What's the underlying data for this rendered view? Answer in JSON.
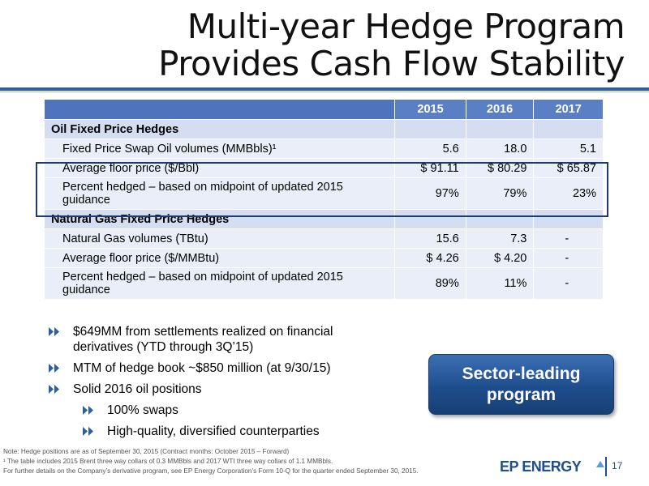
{
  "title": {
    "line1": "Multi-year Hedge Program",
    "line2": "Provides Cash Flow Stability"
  },
  "table": {
    "columns": [
      "2015",
      "2016",
      "2017"
    ],
    "sections": [
      {
        "heading": "Oil Fixed Price Hedges",
        "rows": [
          {
            "label": "Fixed Price Swap Oil volumes (MMBbls)¹",
            "values": [
              "5.6",
              "18.0",
              "5.1"
            ]
          },
          {
            "label": "Average floor price ($/Bbl)",
            "values": [
              "$ 91.11",
              "$ 80.29",
              "$ 65.87"
            ]
          },
          {
            "label": "Percent hedged – based on midpoint of updated 2015 guidance",
            "values": [
              "97%",
              "79%",
              "23%"
            ]
          }
        ]
      },
      {
        "heading": "Natural Gas Fixed Price Hedges",
        "rows": [
          {
            "label": "Natural Gas volumes (TBtu)",
            "values": [
              "15.6",
              "7.3",
              "-"
            ]
          },
          {
            "label": "Average floor price ($/MMBtu)",
            "values": [
              "$ 4.26",
              "$ 4.20",
              "-"
            ]
          },
          {
            "label": "Percent hedged – based on midpoint of updated 2015 guidance",
            "values": [
              "89%",
              "11%",
              "-"
            ]
          }
        ]
      }
    ]
  },
  "bullets": [
    {
      "text": "$649MM from settlements realized on financial derivatives (YTD through 3Q’15)"
    },
    {
      "text": "MTM of hedge book ~$850 million (at 9/30/15)"
    },
    {
      "text": "Solid 2016 oil positions"
    }
  ],
  "sub_bullets": [
    {
      "text": "100% swaps"
    },
    {
      "text": "High-quality, diversified counterparties"
    }
  ],
  "callout": {
    "line1": "Sector-leading",
    "line2": "program"
  },
  "notes": {
    "note1": "Note: Hedge positions are as of September 30, 2015 (Contract months: October 2015 – Forward)",
    "note2": "¹ The table includes 2015 Brent three way collars of 0.3 MMBbls and 2017 WTI three way collars of 1.1 MMBbls.",
    "note3": "For further details on the Company’s derivative program, see EP Energy Corporation’s Form 10-Q for the quarter ended September 30, 2015."
  },
  "footer": {
    "logo": "EP ENERGY",
    "page": "17"
  },
  "colors": {
    "accent": "#2b5f9e",
    "table_header": "#5b7fc4",
    "section_bg": "#d5def0",
    "row_bg": "#e9eef8",
    "button": "#1f4e8d"
  }
}
